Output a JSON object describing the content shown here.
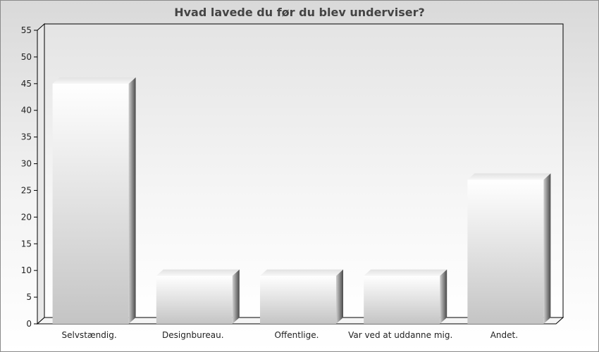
{
  "chart_data": {
    "type": "bar",
    "title": "Hvad lavede du før du blev underviser?",
    "categories": [
      "Selvstændig.",
      "Designbureau.",
      "Offentlige.",
      "Var ved at uddanne mig.",
      "Andet."
    ],
    "values": [
      45,
      9,
      9,
      9,
      27
    ],
    "yticks": [
      0,
      5,
      10,
      15,
      20,
      25,
      30,
      35,
      40,
      45,
      50,
      55
    ],
    "ylim": [
      0,
      55
    ],
    "xlabel": "",
    "ylabel": "",
    "grid": false,
    "legend": "none",
    "style": "3d-bars"
  },
  "colors": {
    "bar_light": "#ffffff",
    "bar_dark": "#c4c4c4",
    "bar_side_dark": "#5a5a5a",
    "bar_top": "#f2f2f2",
    "frame": "#000000"
  }
}
